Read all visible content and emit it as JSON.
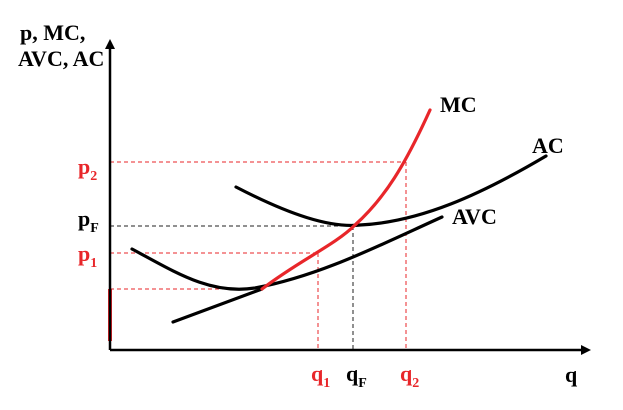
{
  "colors": {
    "ink": "#000000",
    "accent": "#e8262a",
    "guide_red": "#e8262a",
    "guide_black": "#222222"
  },
  "axes": {
    "y_title": [
      "p, MC,",
      "AVC, AC"
    ],
    "x_title": "q"
  },
  "curves": {
    "mc": "MC",
    "ac": "AC",
    "avc": "AVC"
  },
  "y_marks": {
    "p2": {
      "base": "p",
      "sub": "2"
    },
    "pF": {
      "base": "p",
      "sub": "F"
    },
    "p1": {
      "base": "p",
      "sub": "1"
    }
  },
  "x_marks": {
    "q1": {
      "base": "q",
      "sub": "1"
    },
    "qF": {
      "base": "q",
      "sub": "F"
    },
    "q2": {
      "base": "q",
      "sub": "2"
    }
  }
}
